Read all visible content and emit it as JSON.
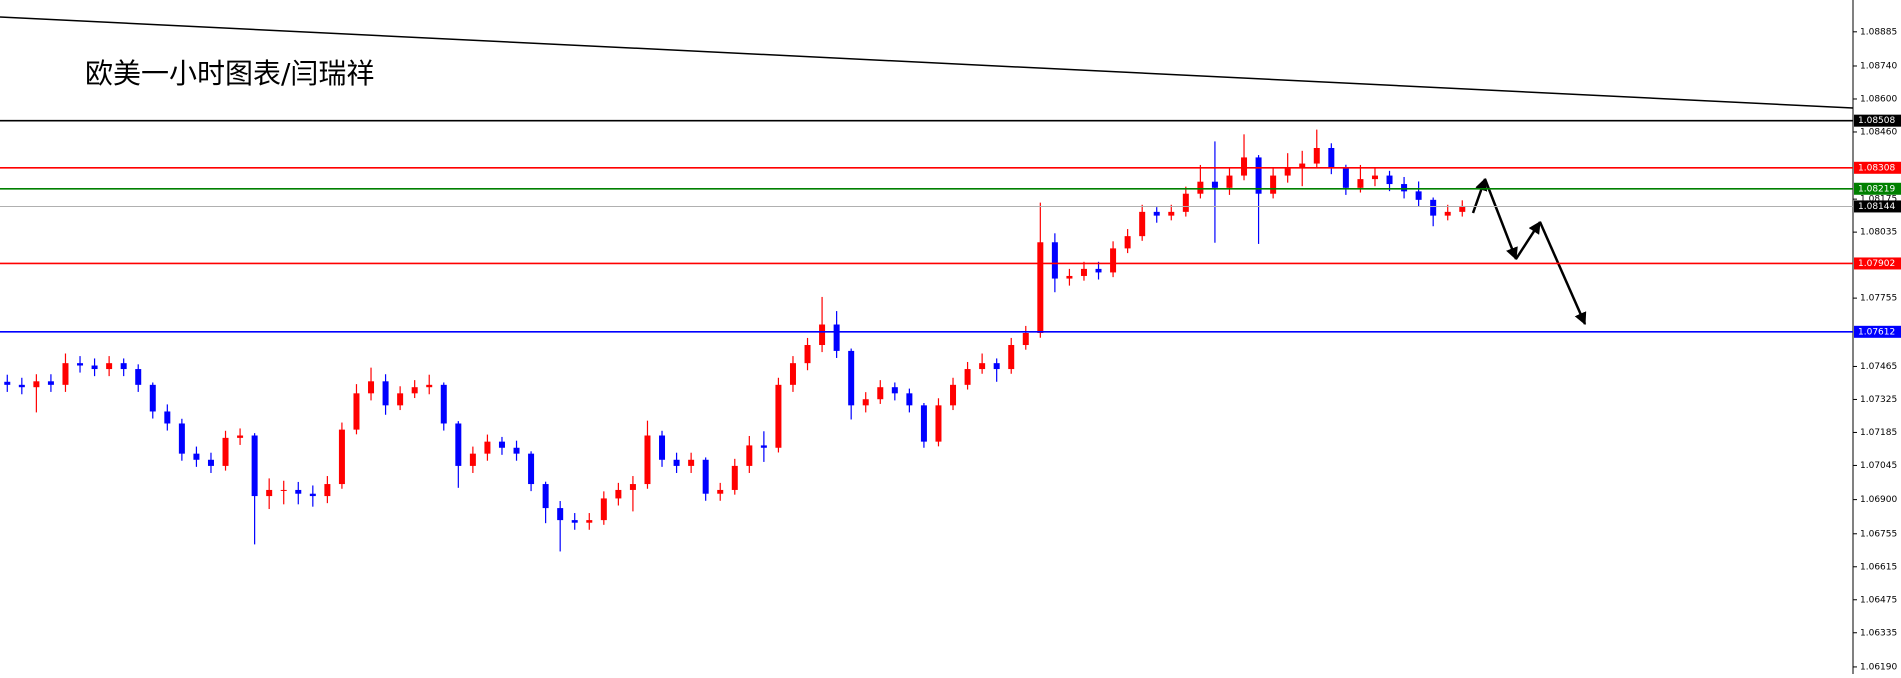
{
  "chart_data": {
    "type": "candlestick",
    "title": "欧美一小时图表/闫瑞祥",
    "up_color": "#ff0000",
    "down_color": "#0000ff",
    "ylim": [
      1.0616,
      1.0902
    ],
    "yticks": [
      1.08885,
      {
        "value": 1.0874,
        "label": "1.08740"
      },
      {
        "value": 1.086,
        "label": "1.08600"
      },
      {
        "value": 1.0846,
        "label": "1.08460"
      },
      1.08175,
      1.08035,
      1.07755,
      1.07465,
      1.07325,
      1.07185,
      1.07045,
      {
        "value": 1.069,
        "label": "1.06900"
      },
      1.06755,
      1.06615,
      1.06475,
      1.06335,
      {
        "value": 1.0619,
        "label": "1.06190"
      }
    ],
    "levels": [
      {
        "value": 1.08508,
        "color": "#000000"
      },
      {
        "value": 1.08308,
        "color": "#ff0000"
      },
      {
        "value": 1.08219,
        "color": "#008000"
      },
      {
        "value": 1.08144,
        "color": "#000000"
      },
      {
        "value": 1.07902,
        "color": "#ff0000"
      },
      {
        "value": 1.07612,
        "color": "#0000ff"
      }
    ],
    "ohlc": [
      [
        1.074,
        1.0743,
        1.07357,
        1.07387
      ],
      [
        1.07387,
        1.07417,
        1.07347,
        1.07377
      ],
      [
        1.07377,
        1.07432,
        1.0727,
        1.07402
      ],
      [
        1.07402,
        1.07432,
        1.07357,
        1.07387
      ],
      [
        1.07387,
        1.0752,
        1.07357,
        1.07479
      ],
      [
        1.07479,
        1.07509,
        1.07439,
        1.07469
      ],
      [
        1.07469,
        1.07499,
        1.07424,
        1.07454
      ],
      [
        1.07454,
        1.07509,
        1.07424,
        1.07479
      ],
      [
        1.07479,
        1.07499,
        1.07424,
        1.07454
      ],
      [
        1.07454,
        1.07474,
        1.07357,
        1.07387
      ],
      [
        1.07387,
        1.07397,
        1.07244,
        1.07274
      ],
      [
        1.07274,
        1.07304,
        1.07193,
        1.07223
      ],
      [
        1.07223,
        1.07243,
        1.07065,
        1.07095
      ],
      [
        1.07095,
        1.07125,
        1.07039,
        1.07069
      ],
      [
        1.07069,
        1.07099,
        1.07013,
        1.07043
      ],
      [
        1.07043,
        1.07192,
        1.07023,
        1.07162
      ],
      [
        1.07162,
        1.07202,
        1.07132,
        1.07172
      ],
      [
        1.07172,
        1.07182,
        1.0671,
        1.06915
      ],
      [
        1.06915,
        1.0699,
        1.0686,
        1.06941
      ],
      [
        1.06941,
        1.0698,
        1.0688,
        1.06941
      ],
      [
        1.06941,
        1.06975,
        1.0688,
        1.06925
      ],
      [
        1.06925,
        1.0696,
        1.0687,
        1.06915
      ],
      [
        1.06915,
        1.07,
        1.06885,
        1.06966
      ],
      [
        1.06966,
        1.07227,
        1.06946,
        1.07197
      ],
      [
        1.07197,
        1.0739,
        1.07177,
        1.07351
      ],
      [
        1.07351,
        1.0746,
        1.07321,
        1.07402
      ],
      [
        1.07402,
        1.07432,
        1.0726,
        1.073
      ],
      [
        1.073,
        1.07381,
        1.0728,
        1.07351
      ],
      [
        1.07351,
        1.07407,
        1.07331,
        1.07377
      ],
      [
        1.07377,
        1.0743,
        1.07347,
        1.07387
      ],
      [
        1.07387,
        1.07397,
        1.07193,
        1.07223
      ],
      [
        1.07223,
        1.07233,
        1.0695,
        1.07043
      ],
      [
        1.07043,
        1.07125,
        1.07013,
        1.07095
      ],
      [
        1.07095,
        1.07176,
        1.07065,
        1.07146
      ],
      [
        1.07146,
        1.07166,
        1.0709,
        1.0712
      ],
      [
        1.0712,
        1.0715,
        1.07065,
        1.07095
      ],
      [
        1.07095,
        1.07105,
        1.06936,
        1.06966
      ],
      [
        1.06966,
        1.06976,
        1.068,
        1.06864
      ],
      [
        1.06864,
        1.06894,
        1.0668,
        1.06813
      ],
      [
        1.06813,
        1.06843,
        1.06772,
        1.06802
      ],
      [
        1.06802,
        1.06843,
        1.06772,
        1.06813
      ],
      [
        1.06813,
        1.06935,
        1.06793,
        1.06905
      ],
      [
        1.06905,
        1.06971,
        1.06875,
        1.06941
      ],
      [
        1.06941,
        1.07,
        1.0685,
        1.06966
      ],
      [
        1.06966,
        1.07235,
        1.06946,
        1.07172
      ],
      [
        1.07172,
        1.07192,
        1.07039,
        1.07069
      ],
      [
        1.07069,
        1.07099,
        1.07013,
        1.07043
      ],
      [
        1.07043,
        1.07099,
        1.07013,
        1.07069
      ],
      [
        1.07069,
        1.07079,
        1.06895,
        1.06925
      ],
      [
        1.06925,
        1.06971,
        1.06895,
        1.06941
      ],
      [
        1.06941,
        1.07073,
        1.06921,
        1.07043
      ],
      [
        1.07043,
        1.0717,
        1.07013,
        1.0713
      ],
      [
        1.0713,
        1.0719,
        1.0706,
        1.0712
      ],
      [
        1.0712,
        1.07417,
        1.071,
        1.07387
      ],
      [
        1.07387,
        1.07509,
        1.07357,
        1.07479
      ],
      [
        1.07479,
        1.07586,
        1.07449,
        1.07556
      ],
      [
        1.07556,
        1.0776,
        1.07526,
        1.07643
      ],
      [
        1.07643,
        1.077,
        1.07501,
        1.07531
      ],
      [
        1.07531,
        1.07541,
        1.0724,
        1.073
      ],
      [
        1.073,
        1.07356,
        1.0727,
        1.07326
      ],
      [
        1.07326,
        1.07407,
        1.07306,
        1.07377
      ],
      [
        1.07377,
        1.07397,
        1.07321,
        1.07351
      ],
      [
        1.07351,
        1.07371,
        1.0727,
        1.073
      ],
      [
        1.073,
        1.0731,
        1.0712,
        1.07146
      ],
      [
        1.07146,
        1.0733,
        1.07126,
        1.073
      ],
      [
        1.073,
        1.07417,
        1.0728,
        1.07387
      ],
      [
        1.07387,
        1.07484,
        1.07367,
        1.07454
      ],
      [
        1.07454,
        1.0752,
        1.07434,
        1.07479
      ],
      [
        1.07479,
        1.07499,
        1.074,
        1.07454
      ],
      [
        1.07454,
        1.07586,
        1.07434,
        1.07556
      ],
      [
        1.07556,
        1.07637,
        1.07536,
        1.07607
      ],
      [
        1.07607,
        1.0816,
        1.07587,
        1.07992
      ],
      [
        1.07992,
        1.0803,
        1.0778,
        1.07838
      ],
      [
        1.07838,
        1.07879,
        1.07808,
        1.07849
      ],
      [
        1.07849,
        1.07909,
        1.07829,
        1.07879
      ],
      [
        1.07879,
        1.07909,
        1.07834,
        1.07864
      ],
      [
        1.07864,
        1.07996,
        1.07844,
        1.07966
      ],
      [
        1.07966,
        1.08048,
        1.07946,
        1.08018
      ],
      [
        1.08018,
        1.08151,
        1.07998,
        1.08121
      ],
      [
        1.08121,
        1.08141,
        1.08075,
        1.08105
      ],
      [
        1.08105,
        1.08151,
        1.08085,
        1.08121
      ],
      [
        1.08121,
        1.08228,
        1.08101,
        1.08198
      ],
      [
        1.08198,
        1.0832,
        1.08178,
        1.08249
      ],
      [
        1.08249,
        1.0842,
        1.0799,
        1.08223
      ],
      [
        1.08223,
        1.08305,
        1.08193,
        1.08275
      ],
      [
        1.08275,
        1.0845,
        1.08255,
        1.08352
      ],
      [
        1.08352,
        1.08362,
        1.07985,
        1.08198
      ],
      [
        1.08198,
        1.08305,
        1.08178,
        1.08275
      ],
      [
        1.08275,
        1.0837,
        1.08245,
        1.08311
      ],
      [
        1.08311,
        1.0838,
        1.0823,
        1.08326
      ],
      [
        1.08326,
        1.0847,
        1.08306,
        1.08392
      ],
      [
        1.08392,
        1.08412,
        1.08281,
        1.08311
      ],
      [
        1.08311,
        1.08321,
        1.08193,
        1.08223
      ],
      [
        1.08223,
        1.0832,
        1.08203,
        1.0826
      ],
      [
        1.0826,
        1.08305,
        1.0823,
        1.08275
      ],
      [
        1.08275,
        1.08295,
        1.08209,
        1.08239
      ],
      [
        1.08239,
        1.08269,
        1.08178,
        1.08208
      ],
      [
        1.08208,
        1.0825,
        1.08142,
        1.08172
      ],
      [
        1.08172,
        1.08182,
        1.0806,
        1.08105
      ],
      [
        1.08105,
        1.08151,
        1.08085,
        1.08121
      ],
      [
        1.08121,
        1.0817,
        1.08101,
        1.08146
      ]
    ]
  }
}
